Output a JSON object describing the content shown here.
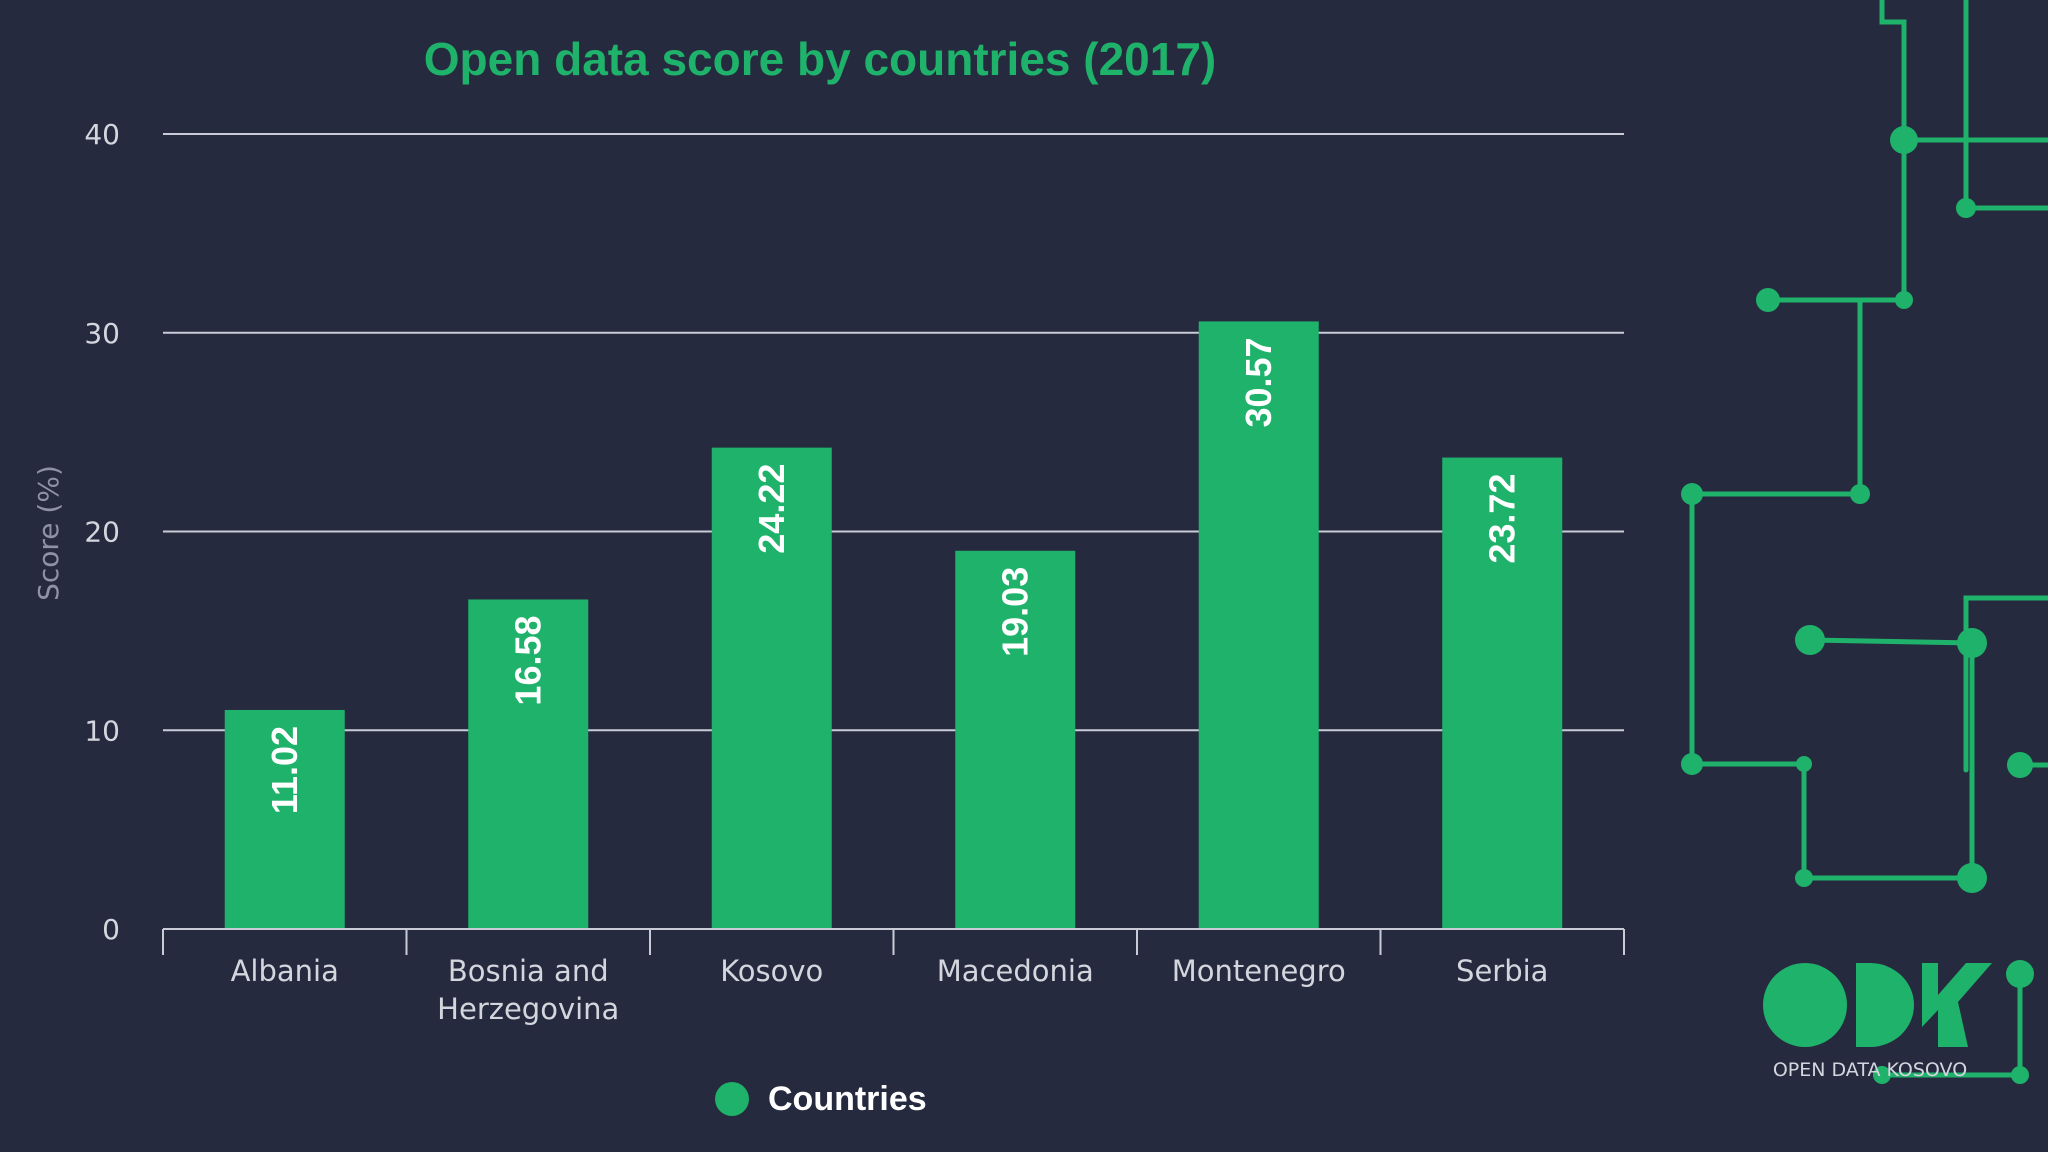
{
  "chart_data": {
    "type": "bar",
    "title": "Open data score by countries (2017)",
    "xlabel": "",
    "ylabel": "Score (%)",
    "ylim": [
      0,
      40
    ],
    "yticks": [
      0,
      10,
      20,
      30,
      40
    ],
    "grid": true,
    "categories": [
      [
        "Albania"
      ],
      [
        "Bosnia and",
        "Herzegovina"
      ],
      [
        "Kosovo"
      ],
      [
        "Macedonia"
      ],
      [
        "Montenegro"
      ],
      [
        "Serbia"
      ]
    ],
    "series": [
      {
        "name": "Countries",
        "values": [
          11.02,
          16.58,
          24.22,
          19.03,
          30.57,
          23.72
        ],
        "data_labels": [
          "11.02",
          "16.58",
          "24.22",
          "19.03",
          "30.57",
          "23.72"
        ]
      }
    ],
    "legend_position": "bottom"
  },
  "branding": {
    "logo_caption": "OPEN DATA KOSOVO"
  },
  "colors": {
    "background": "#262a3f",
    "bar": "#1fb26a",
    "title": "#1fb26a",
    "grid": "#c9ccd6",
    "tick_text": "#d4d6de",
    "axis_title": "#8e92a3",
    "circuit": "#1fb26a",
    "legend_text": "#ffffff"
  }
}
